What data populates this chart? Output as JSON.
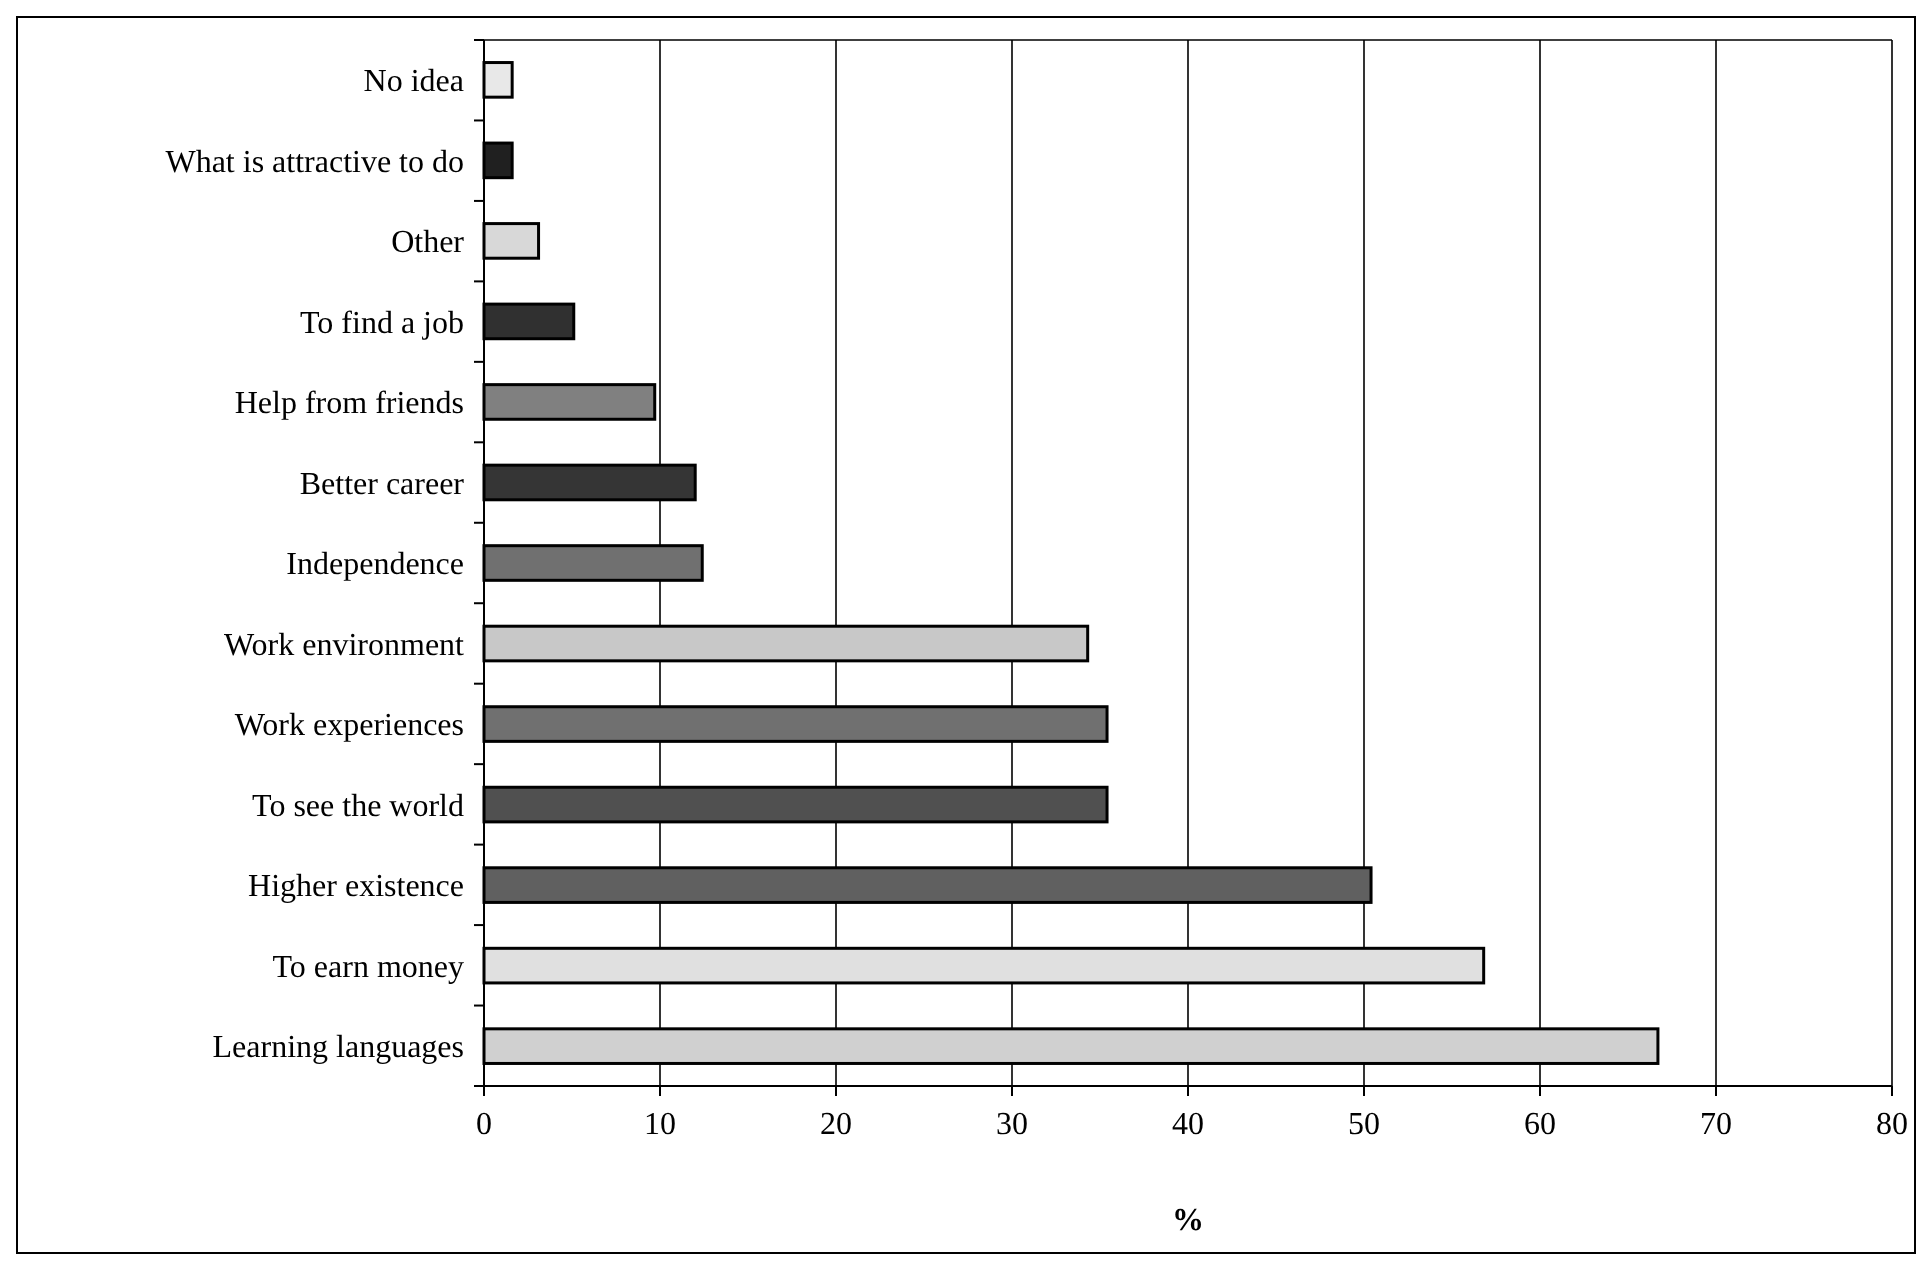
{
  "chart_data": {
    "type": "bar",
    "orientation": "horizontal",
    "xlabel": "%",
    "categories": [
      "No idea",
      "What is attractive to do",
      "Other",
      "To find a job",
      "Help from friends",
      "Better career",
      "Independence",
      "Work environment",
      "Work experiences",
      "To see the world",
      "Higher existence",
      "To earn money",
      "Learning languages"
    ],
    "values": [
      1.6,
      1.6,
      3.1,
      5.1,
      9.7,
      12.0,
      12.4,
      34.3,
      35.4,
      35.4,
      50.4,
      56.8,
      66.7
    ],
    "colors": [
      "#e8e8e8",
      "#202020",
      "#d8d8d8",
      "#303030",
      "#808080",
      "#353535",
      "#707070",
      "#c8c8c8",
      "#707070",
      "#505050",
      "#606060",
      "#e0e0e0",
      "#d0d0d0"
    ],
    "xlim": [
      0,
      80
    ],
    "xticks": [
      0,
      10,
      20,
      30,
      40,
      50,
      60,
      70,
      80
    ],
    "grid": "x"
  }
}
